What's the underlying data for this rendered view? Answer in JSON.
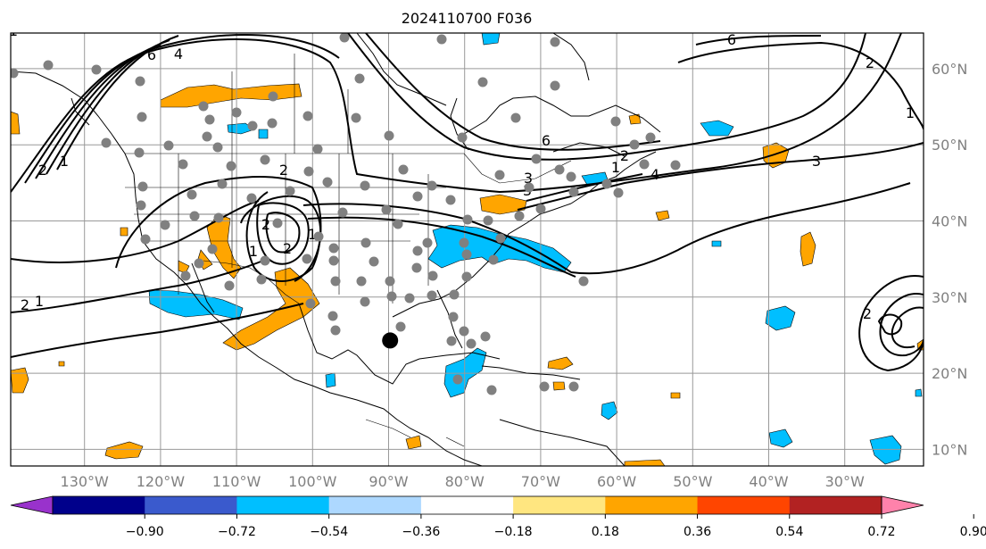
{
  "title": "2024110700 F036",
  "map": {
    "lon_range": [
      -138,
      -17
    ],
    "lat_range": [
      8,
      65
    ],
    "lon_ticks": [
      {
        "lon": -130,
        "label": "130°W"
      },
      {
        "lon": -120,
        "label": "120°W"
      },
      {
        "lon": -110,
        "label": "110°W"
      },
      {
        "lon": -100,
        "label": "100°W"
      },
      {
        "lon": -90,
        "label": "90°W"
      },
      {
        "lon": -80,
        "label": "80°W"
      },
      {
        "lon": -70,
        "label": "70°W"
      },
      {
        "lon": -60,
        "label": "60°W"
      },
      {
        "lon": -50,
        "label": "50°W"
      },
      {
        "lon": -40,
        "label": "40°W"
      },
      {
        "lon": -30,
        "label": "30°W"
      }
    ],
    "lat_ticks": [
      {
        "lat": 60,
        "label": "60°N"
      },
      {
        "lat": 50,
        "label": "50°N"
      },
      {
        "lat": 40,
        "label": "40°N"
      },
      {
        "lat": 30,
        "label": "30°N"
      },
      {
        "lat": 20,
        "label": "20°N"
      },
      {
        "lat": 10,
        "label": "10°N"
      }
    ],
    "grid": true,
    "highlight_point": {
      "lon": -89.8,
      "lat": 24.3
    },
    "contour_labels": [
      "6",
      "4",
      "2",
      "1",
      "2",
      "1",
      "6",
      "2",
      "3",
      "1",
      "3",
      "2",
      "4",
      "1",
      "2",
      "1",
      "6",
      "3",
      "2",
      "1",
      "2",
      "2",
      "1"
    ]
  },
  "colorbar": {
    "ticks": [
      "−0.90",
      "−0.72",
      "−0.54",
      "−0.36",
      "−0.18",
      "0.18",
      "0.36",
      "0.54",
      "0.72",
      "0.90"
    ],
    "colors": [
      "#9932cc",
      "#00008b",
      "#3a5acd",
      "#00bfff",
      "#add8ff",
      "#ffffff",
      "#ffe680",
      "#ffa500",
      "#ff4500",
      "#b22222",
      "#ff82ab"
    ]
  }
}
